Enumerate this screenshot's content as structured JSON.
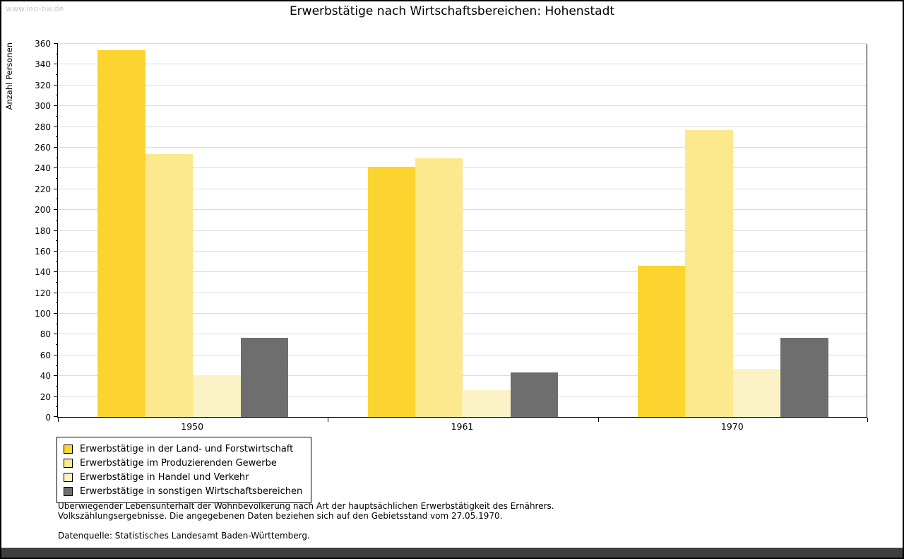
{
  "watermark": "www.leo-bw.de",
  "title": "Erwerbstätige nach Wirtschaftsbereichen: Hohenstadt",
  "chart_data": {
    "type": "bar",
    "title": "Erwerbstätige nach Wirtschaftsbereichen: Hohenstadt",
    "xlabel": "",
    "ylabel": "Anzahl Personen",
    "ylim": [
      0,
      360
    ],
    "ytick_step": 20,
    "yminor_step": 10,
    "grid": true,
    "legend_position": "bottom-left",
    "categories": [
      "1950",
      "1961",
      "1970"
    ],
    "series": [
      {
        "name": "Erwerbstätige in der Land- und Forstwirtschaft",
        "color": "#FCD42F",
        "values": [
          353,
          241,
          146
        ]
      },
      {
        "name": "Erwerbstätige im Produzierenden Gewerbe",
        "color": "#FCE98D",
        "values": [
          253,
          249,
          276
        ]
      },
      {
        "name": "Erwerbstätige in Handel und Verkehr",
        "color": "#FBF3C5",
        "values": [
          40,
          26,
          46
        ]
      },
      {
        "name": "Erwerbstätige in sonstigen Wirtschaftsbereichen",
        "color": "#6E6E6E",
        "values": [
          76,
          43,
          76
        ]
      }
    ]
  },
  "footnotes": [
    "Überwiegender Lebensunterhalt der Wohnbevölkerung nach Art der hauptsächlichen Erwerbstätigkeit des Ernährers.",
    "Volkszählungsergebnisse. Die angegebenen Daten beziehen sich auf den Gebietsstand vom 27.05.1970."
  ],
  "source": "Datenquelle: Statistisches Landesamt Baden-Württemberg.",
  "colors": {
    "gridline": "#DCDCDC",
    "watermark": "#C9C9C9",
    "bottom_strip": "#3F3F3F",
    "axis": "#000000"
  }
}
